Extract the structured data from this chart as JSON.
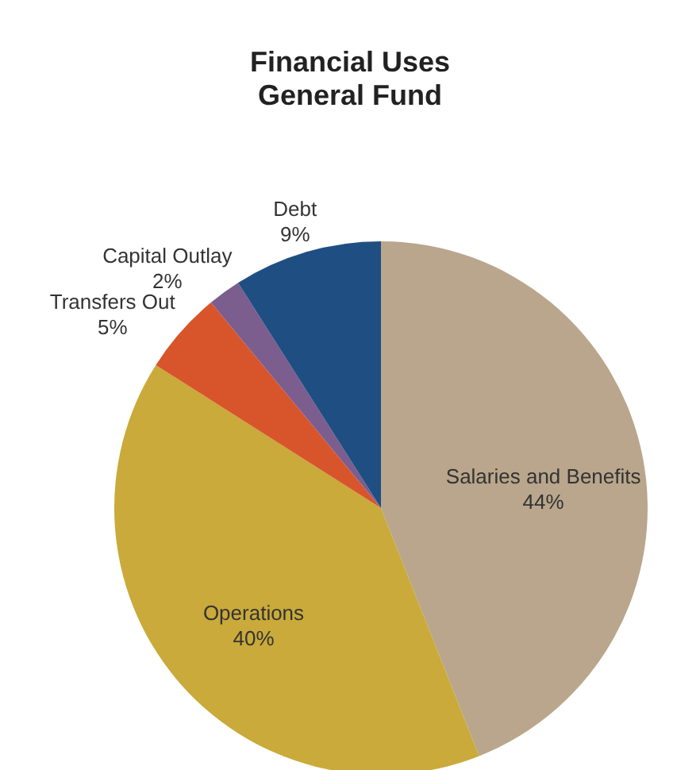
{
  "chart_data": {
    "type": "pie",
    "title": "Financial Uses",
    "subtitle": "General Fund",
    "categories": [
      "Salaries and Benefits",
      "Operations",
      "Transfers Out",
      "Capital Outlay",
      "Debt"
    ],
    "values": [
      44,
      40,
      5,
      2,
      9
    ],
    "value_labels": [
      "44%",
      "40%",
      "5%",
      "2%",
      "9%"
    ],
    "colors": [
      "#b9a68c",
      "#c9aa3a",
      "#d8552c",
      "#7b5d8e",
      "#1f4f82"
    ]
  }
}
